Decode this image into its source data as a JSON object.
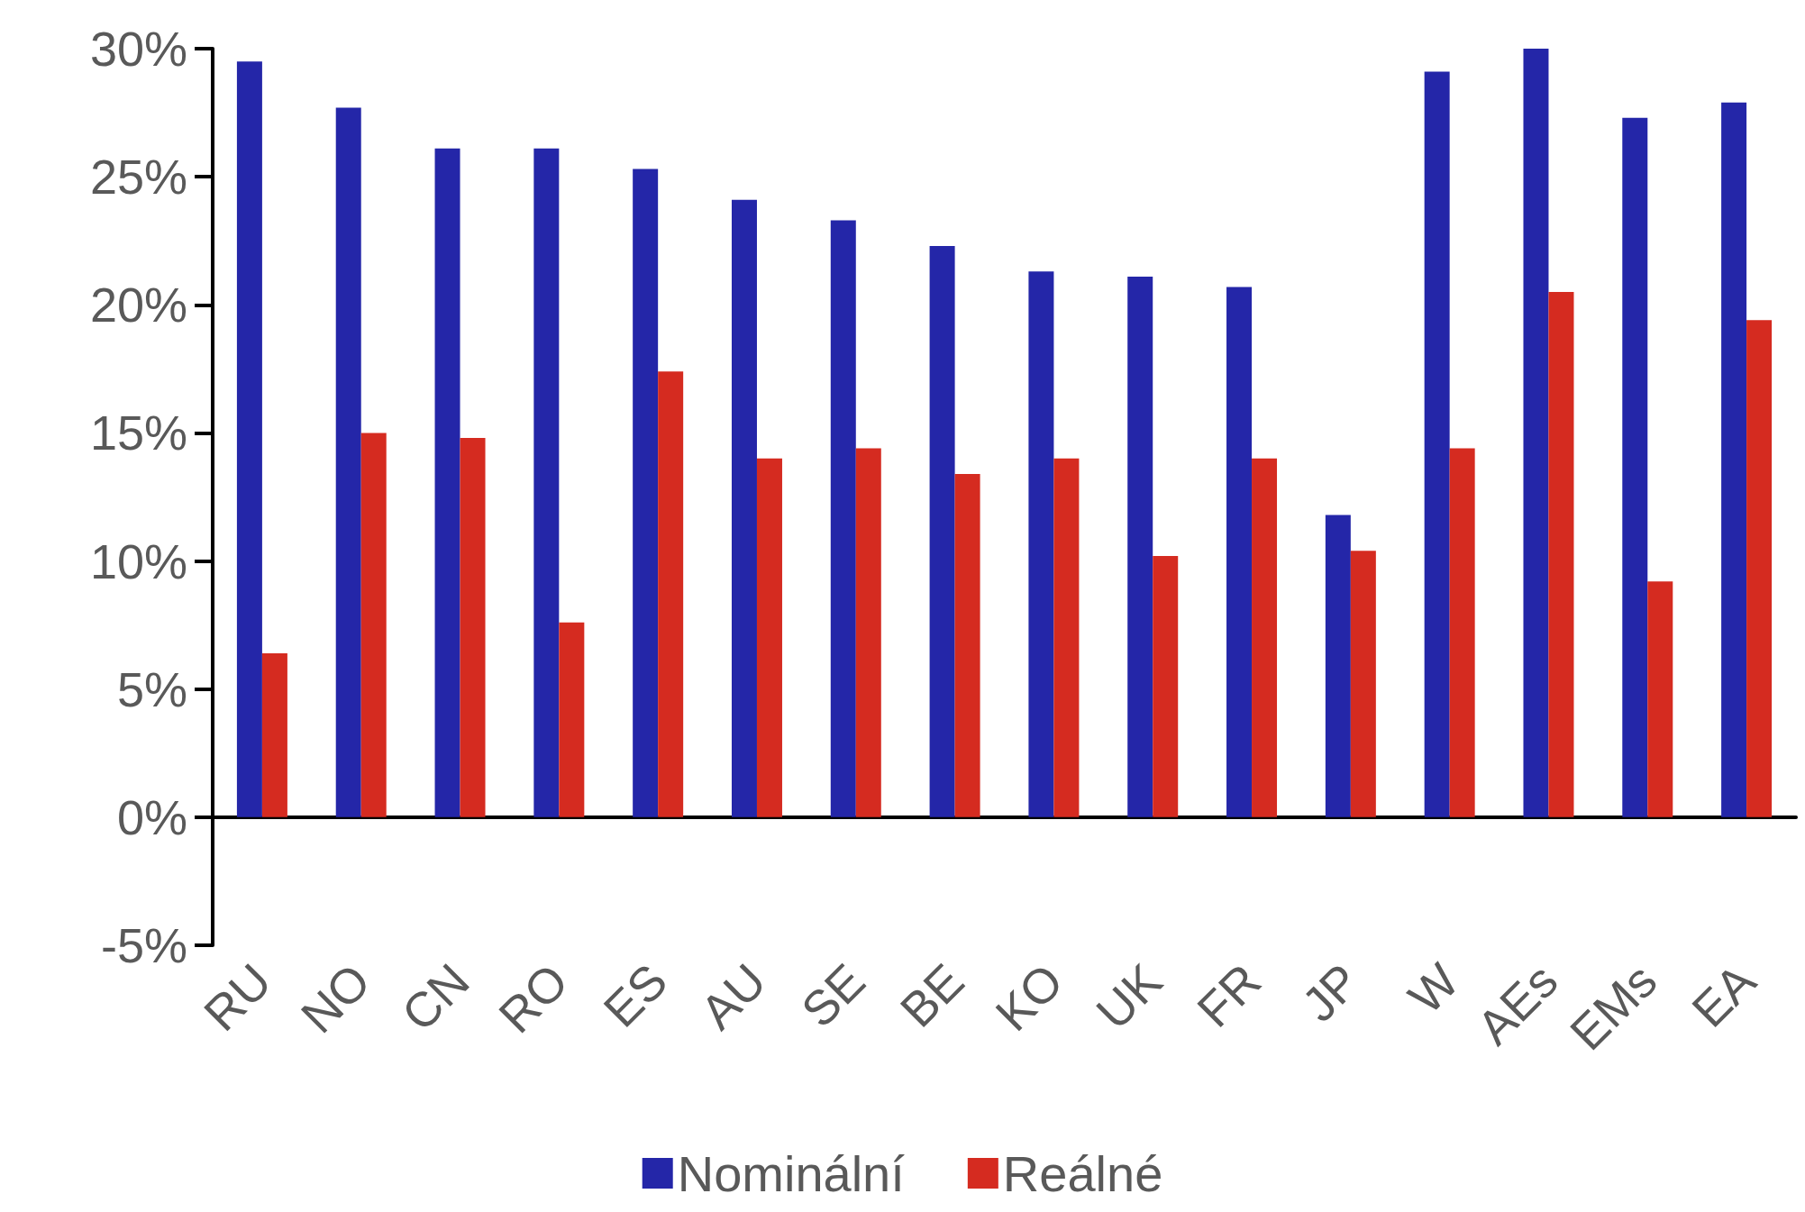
{
  "chart_data": {
    "type": "bar",
    "categories": [
      "RU",
      "NO",
      "CN",
      "RO",
      "ES",
      "AU",
      "SE",
      "BE",
      "KO",
      "UK",
      "FR",
      "JP",
      "W",
      "AEs",
      "EMs",
      "EA"
    ],
    "series": [
      {
        "name": "Nominální",
        "color": "#2426a8",
        "values": [
          29.5,
          27.7,
          26.1,
          26.1,
          25.3,
          24.1,
          23.3,
          22.3,
          21.3,
          21.1,
          20.7,
          11.8,
          29.1,
          30.0,
          27.3,
          27.9
        ]
      },
      {
        "name": "Reálné",
        "color": "#d52b20",
        "values": [
          6.4,
          15.0,
          14.8,
          7.6,
          17.4,
          14.0,
          14.4,
          13.4,
          14.0,
          10.2,
          14.0,
          10.4,
          14.4,
          20.5,
          9.2,
          19.4
        ]
      }
    ],
    "ylim": [
      -5,
      30
    ],
    "yticks": [
      {
        "value": -5,
        "label": "-5%"
      },
      {
        "value": 0,
        "label": "0%"
      },
      {
        "value": 5,
        "label": "5%"
      },
      {
        "value": 10,
        "label": "10%"
      },
      {
        "value": 15,
        "label": "15%"
      },
      {
        "value": 20,
        "label": "20%"
      },
      {
        "value": 25,
        "label": "25%"
      },
      {
        "value": 30,
        "label": "30%"
      }
    ],
    "legend": "bottom"
  }
}
